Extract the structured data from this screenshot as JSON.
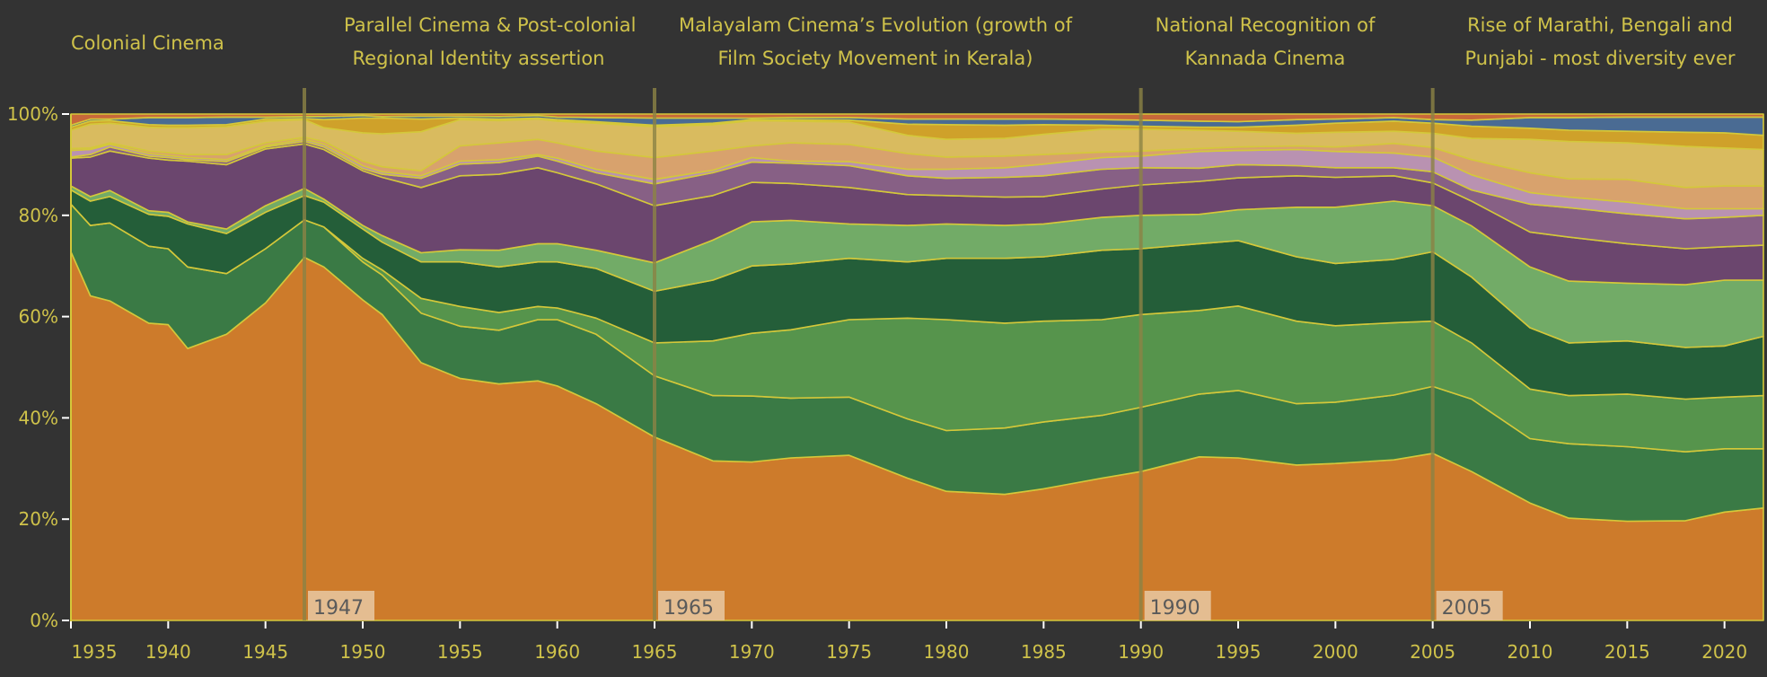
{
  "chart_data": {
    "type": "area",
    "stacking": "percent",
    "title": "",
    "xlabel": "",
    "ylabel": "",
    "xlim": [
      1935,
      2022
    ],
    "ylim": [
      0,
      100
    ],
    "grid": false,
    "legend": "none",
    "yticks": [
      0,
      20,
      40,
      60,
      80,
      100
    ],
    "ytick_labels": [
      "0%",
      "20%",
      "40%",
      "60%",
      "80%",
      "100%"
    ],
    "xticks": [
      1935,
      1940,
      1945,
      1950,
      1955,
      1960,
      1965,
      1970,
      1975,
      1980,
      1985,
      1990,
      1995,
      2000,
      2005,
      2010,
      2015,
      2020
    ],
    "xtick_labels": [
      "1935",
      "1940",
      "1945",
      "1950",
      "1955",
      "1960",
      "1965",
      "1970",
      "1975",
      "1980",
      "1985",
      "1990",
      "1995",
      "2000",
      "2005",
      "2010",
      "2015",
      "2020"
    ],
    "x": [
      1935,
      1936,
      1937,
      1939,
      1940,
      1941,
      1943,
      1945,
      1947,
      1948,
      1950,
      1951,
      1953,
      1955,
      1957,
      1959,
      1960,
      1962,
      1965,
      1968,
      1970,
      1972,
      1975,
      1978,
      1980,
      1983,
      1985,
      1988,
      1990,
      1993,
      1995,
      1998,
      2000,
      2003,
      2005,
      2007,
      2010,
      2012,
      2015,
      2018,
      2020,
      2022
    ],
    "series": [
      {
        "color": "#cd7b2b",
        "values": [
          72.8,
          64.1,
          63.1,
          58.7,
          58.4,
          53.7,
          56.5,
          62.7,
          71.7,
          69.8,
          63.3,
          60.4,
          50.9,
          47.8,
          46.7,
          47.3,
          46.3,
          42.8,
          36.2,
          31.5,
          31.3,
          32.1,
          32.6,
          28.1,
          25.5,
          24.9,
          26.0,
          28.1,
          29.4,
          32.3,
          32.1,
          30.7,
          31.0,
          31.7,
          33.0,
          29.4,
          23.2,
          20.2,
          19.6,
          19.7,
          21.4,
          22.2
        ]
      },
      {
        "color": "#3a7a45",
        "values": [
          9.4,
          13.9,
          15.4,
          15.2,
          15.0,
          16.1,
          12.0,
          10.7,
          7.4,
          7.9,
          7.5,
          7.8,
          9.8,
          10.3,
          10.6,
          12.1,
          13.1,
          13.7,
          12.1,
          12.9,
          13.0,
          11.8,
          11.5,
          11.7,
          12.0,
          13.1,
          13.2,
          12.4,
          12.7,
          12.4,
          13.3,
          12.1,
          12.1,
          12.8,
          13.2,
          14.3,
          12.7,
          14.7,
          14.7,
          13.6,
          12.5,
          11.7
        ]
      },
      {
        "color": "#56944c",
        "values": [
          0,
          0,
          0,
          0,
          0,
          0,
          0,
          0,
          0,
          0,
          0.7,
          1.0,
          2.9,
          3.9,
          3.5,
          2.6,
          2.3,
          3.2,
          6.5,
          10.8,
          12.4,
          13.5,
          15.3,
          19.9,
          21.9,
          20.7,
          19.9,
          18.9,
          18.3,
          16.5,
          16.7,
          16.3,
          15.1,
          14.3,
          12.9,
          11.1,
          9.8,
          9.5,
          10.4,
          10.4,
          10.2,
          10.5
        ]
      },
      {
        "color": "#245e39",
        "values": [
          2.8,
          4.8,
          5.2,
          6.3,
          6.4,
          8.5,
          7.9,
          7.2,
          4.8,
          4.9,
          5.8,
          5.5,
          7.2,
          8.8,
          9.0,
          8.8,
          9.1,
          9.8,
          10.2,
          12.0,
          13.3,
          13.0,
          12.1,
          11.1,
          12.1,
          12.8,
          12.7,
          13.7,
          13.0,
          13.2,
          12.9,
          12.7,
          12.3,
          12.5,
          13.7,
          13.0,
          12.1,
          10.4,
          10.5,
          10.2,
          10.1,
          11.7
        ]
      },
      {
        "color": "#72ab67",
        "values": [
          0.8,
          0.9,
          1.2,
          0.7,
          0.8,
          0.4,
          0.9,
          1.3,
          1.4,
          0.6,
          0.7,
          1.3,
          1.8,
          2.4,
          3.3,
          3.6,
          3.6,
          3.6,
          5.6,
          7.9,
          8.7,
          8.6,
          6.8,
          7.2,
          6.8,
          6.5,
          6.5,
          6.5,
          6.6,
          5.8,
          6.1,
          9.8,
          11.1,
          11.5,
          9.1,
          10.1,
          12.0,
          12.2,
          11.4,
          12.4,
          13.0,
          11.1
        ]
      },
      {
        "color": "#6b466e",
        "values": [
          5.5,
          7.8,
          7.8,
          10.4,
          10.3,
          12.0,
          12.7,
          11.2,
          8.8,
          9.8,
          10.8,
          11.5,
          12.9,
          14.6,
          15.0,
          15.0,
          14.0,
          13.1,
          11.3,
          8.8,
          7.8,
          7.3,
          7.2,
          6.1,
          5.6,
          5.6,
          5.4,
          5.6,
          6.0,
          6.5,
          6.3,
          6.2,
          5.9,
          5.0,
          4.5,
          4.9,
          6.9,
          8.7,
          7.8,
          7.1,
          6.6,
          6.9
        ]
      },
      {
        "color": "#876085",
        "values": [
          0.2,
          0.5,
          0.8,
          0.4,
          0.5,
          0.3,
          0.6,
          0.4,
          0.5,
          0.5,
          0.4,
          0.6,
          1.8,
          2.3,
          2.3,
          2.3,
          2.3,
          2.2,
          4.3,
          4.5,
          4.0,
          4.0,
          4.3,
          3.7,
          3.4,
          3.9,
          4.1,
          3.9,
          3.4,
          2.6,
          2.6,
          2.0,
          1.9,
          1.6,
          2.2,
          2.2,
          5.5,
          5.8,
          5.9,
          5.9,
          5.8,
          5.9
        ]
      },
      {
        "color": "#b992b1",
        "values": [
          1.3,
          1.0,
          0.5,
          0.5,
          0.4,
          0.4,
          0.4,
          0.3,
          0.4,
          0.5,
          0.6,
          0.5,
          0.5,
          0.6,
          0.6,
          0.3,
          0.6,
          0.7,
          0.9,
          0.5,
          0.9,
          0.4,
          0.8,
          1.3,
          1.8,
          1.9,
          2.3,
          2.3,
          2.3,
          3.3,
          2.8,
          3.2,
          3.2,
          2.9,
          2.9,
          3.0,
          2.3,
          2.1,
          2.3,
          2.0,
          1.7,
          1.3
        ]
      },
      {
        "color": "#d8a26d",
        "values": [
          0.4,
          0.3,
          0.3,
          0.5,
          0.6,
          0.6,
          1.0,
          0.5,
          0.4,
          0.6,
          0.9,
          1.0,
          1.0,
          3.0,
          3.3,
          3.0,
          3.0,
          3.6,
          4.3,
          3.8,
          2.3,
          3.6,
          3.4,
          3.1,
          2.4,
          2.3,
          1.9,
          1.1,
          1.0,
          0.6,
          0.7,
          0.7,
          0.9,
          1.9,
          1.9,
          3.0,
          3.9,
          3.6,
          4.5,
          4.2,
          4.5,
          4.5
        ]
      },
      {
        "color": "#d9bb5f",
        "values": [
          3.6,
          4.7,
          3.9,
          4.7,
          4.9,
          5.3,
          5.5,
          4.3,
          3.5,
          2.7,
          5.6,
          6.5,
          7.7,
          5.2,
          4.4,
          4.0,
          4.3,
          5.5,
          6.1,
          5.2,
          5.0,
          4.3,
          4.4,
          3.6,
          3.5,
          3.5,
          4.0,
          4.5,
          4.3,
          3.6,
          3.1,
          2.5,
          2.9,
          2.4,
          2.8,
          4.2,
          6.6,
          7.4,
          7.2,
          8.1,
          7.5,
          7.2
        ]
      },
      {
        "color": "#cfa12a",
        "values": [
          0.6,
          0.6,
          0.5,
          0.5,
          0.5,
          0.5,
          0.4,
          0.4,
          0.2,
          1.6,
          2.9,
          3.1,
          2.5,
          0.3,
          0.3,
          0.2,
          0.3,
          0.3,
          0.3,
          0.3,
          0.2,
          0.3,
          0.4,
          2.2,
          2.9,
          2.6,
          1.9,
          0.8,
          0.6,
          0.6,
          0.8,
          1.6,
          1.8,
          2.0,
          2.0,
          2.4,
          2.2,
          2.2,
          2.3,
          2.8,
          3.0,
          2.8
        ]
      },
      {
        "color": "#4a6b93",
        "values": [
          0.4,
          0.4,
          0.3,
          1.4,
          1.5,
          1.5,
          1.5,
          0.4,
          0.4,
          0.6,
          0.5,
          0.3,
          0.6,
          0.4,
          0.5,
          0.5,
          0.5,
          0.8,
          1.4,
          1.0,
          0.3,
          0.4,
          0.5,
          1.0,
          1.1,
          1.2,
          1.1,
          1.1,
          1.2,
          1.2,
          1.1,
          1.1,
          0.8,
          0.7,
          0.7,
          1.2,
          2.1,
          2.5,
          2.8,
          3.0,
          3.1,
          3.6
        ]
      },
      {
        "color": "#c8683a",
        "values": [
          2.2,
          1.0,
          1.0,
          0.7,
          0.7,
          0.7,
          0.6,
          0.6,
          0.5,
          0.5,
          0.3,
          0.5,
          0.4,
          0.4,
          0.5,
          0.3,
          0.6,
          0.7,
          0.8,
          0.8,
          0.8,
          0.7,
          0.7,
          1.0,
          1.0,
          1.0,
          1.0,
          1.1,
          1.2,
          1.4,
          1.5,
          1.1,
          1.0,
          0.7,
          1.1,
          1.2,
          0.7,
          0.7,
          0.6,
          0.6,
          0.6,
          0.6
        ]
      }
    ],
    "annotations": [
      {
        "year": 1947,
        "label": "1947"
      },
      {
        "year": 1965,
        "label": "1965"
      },
      {
        "year": 1990,
        "label": "1990"
      },
      {
        "year": 2005,
        "label": "2005"
      }
    ],
    "era_titles": [
      {
        "lines": [
          "Colonial Cinema"
        ]
      },
      {
        "lines": [
          "Parallel Cinema & Post-colonial",
          "Regional Identity assertion"
        ]
      },
      {
        "lines": [
          "Malayalam Cinema’s Evolution (growth of",
          "Film Society Movement in Kerala)"
        ]
      },
      {
        "lines": [
          "National Recognition of",
          "Kannada Cinema"
        ]
      },
      {
        "lines": [
          "Rise of Marathi, Bengali and",
          "Punjabi - most diversity ever"
        ]
      }
    ]
  },
  "colors": {
    "background": "#333333",
    "text": "#cfc24a",
    "area_stroke": "#d4c83a",
    "annotation_line": "#8c8345",
    "annotation_label_bg": "#e6c29a",
    "annotation_label_text": "#5a5a5a"
  }
}
